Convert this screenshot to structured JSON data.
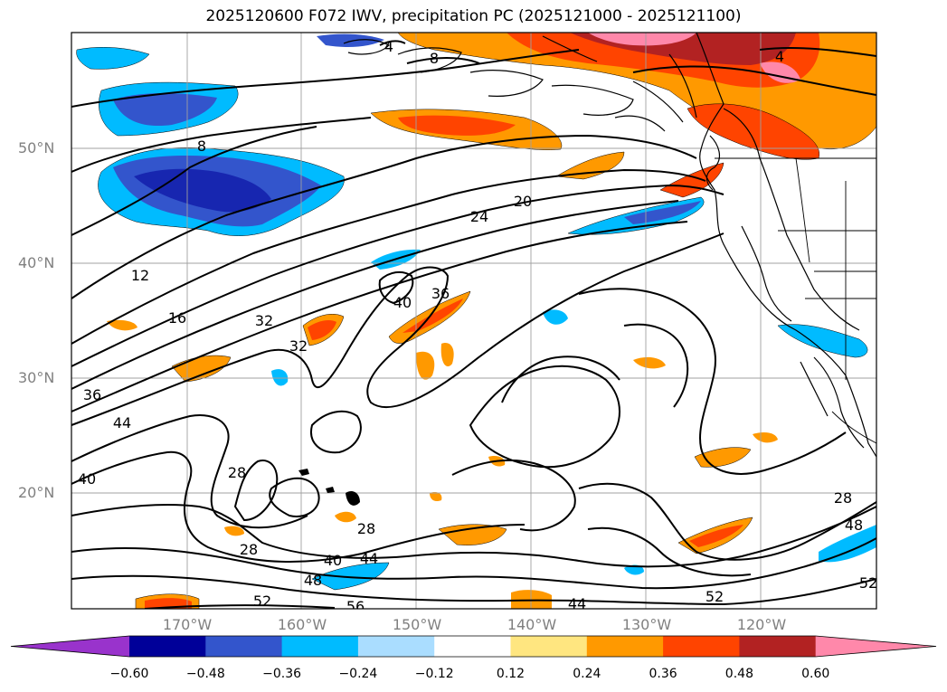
{
  "title": "2025120600 F072 IWV, precipitation PC (2025121000 - 2025121100)",
  "lat_labels": [
    {
      "text": "50°N",
      "lat": 50
    },
    {
      "text": "40°N",
      "lat": 40
    },
    {
      "text": "30°N",
      "lat": 30
    },
    {
      "text": "20°N",
      "lat": 20
    }
  ],
  "lon_labels": [
    {
      "text": "170°W",
      "lon": -170
    },
    {
      "text": "160°W",
      "lon": -160
    },
    {
      "text": "150°W",
      "lon": -150
    },
    {
      "text": "140°W",
      "lon": -140
    },
    {
      "text": "130°W",
      "lon": -130
    },
    {
      "text": "120°W",
      "lon": -120
    }
  ],
  "colorbar": {
    "ticks": [
      "−0.60",
      "−0.48",
      "−0.36",
      "−0.24",
      "−0.12",
      "0.12",
      "0.24",
      "0.36",
      "0.48",
      "0.60"
    ],
    "colors": [
      "#9933cc",
      "#000099",
      "#3355cc",
      "#00bbff",
      "#aaddff",
      "#ffffff",
      "#ffe680",
      "#ff9900",
      "#ff4400",
      "#b22222",
      "#ff88aa"
    ]
  },
  "iwv_contour_labels": [
    "4",
    "8",
    "8",
    "12",
    "16",
    "20",
    "24",
    "28",
    "28",
    "28",
    "28",
    "32",
    "32",
    "36",
    "36",
    "40",
    "40",
    "40",
    "44",
    "44",
    "44",
    "48",
    "48",
    "52",
    "52",
    "56",
    "4",
    "52"
  ]
}
